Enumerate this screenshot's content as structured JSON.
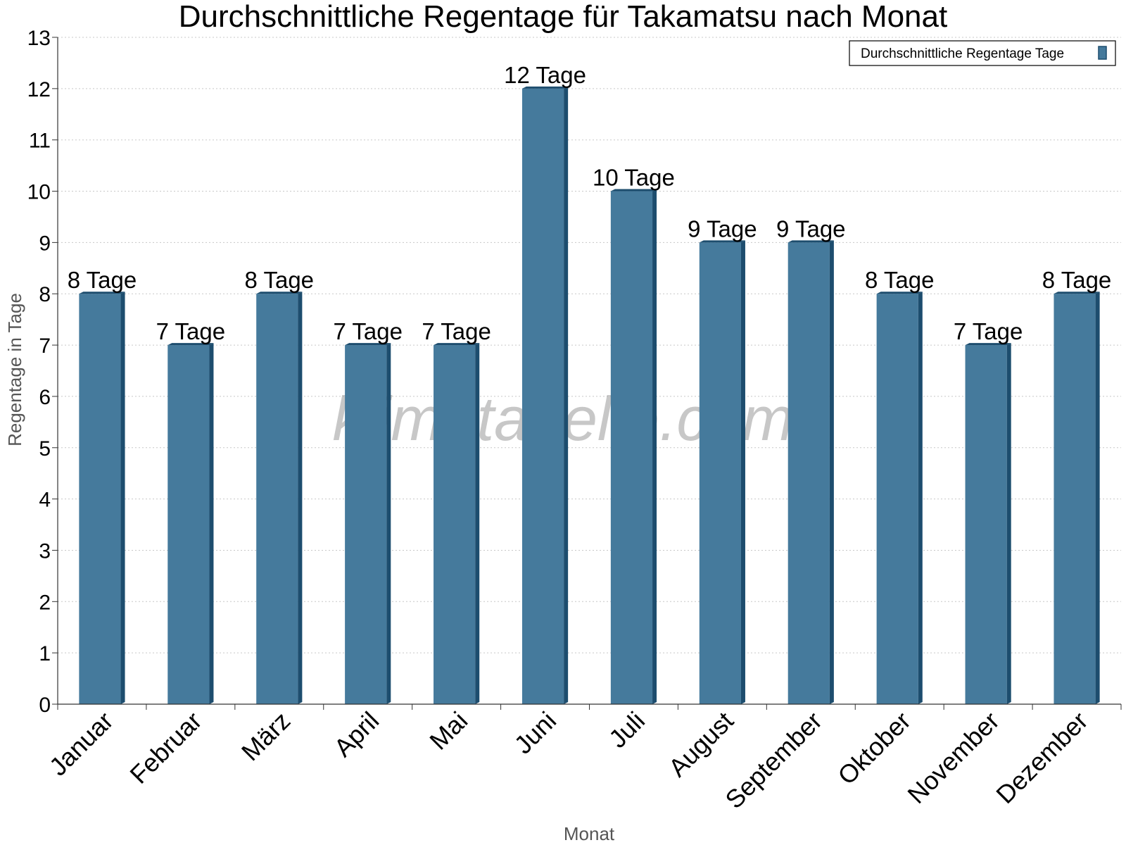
{
  "chart_data": {
    "type": "bar",
    "title": "Durchschnittliche Regentage für Takamatsu nach Monat",
    "xlabel": "Monat",
    "ylabel": "Regentage in Tage",
    "ylim": [
      0,
      13
    ],
    "yticks": [
      0,
      1,
      2,
      3,
      4,
      5,
      6,
      7,
      8,
      9,
      10,
      11,
      12,
      13
    ],
    "grid": true,
    "legend_position": "top-right",
    "categories": [
      "Januar",
      "Februar",
      "März",
      "April",
      "Mai",
      "Juni",
      "Juli",
      "August",
      "September",
      "Oktober",
      "November",
      "Dezember"
    ],
    "series": [
      {
        "name": "Durchschnittliche Regentage Tage",
        "values": [
          8,
          7,
          8,
          7,
          7,
          12,
          10,
          9,
          9,
          8,
          7,
          8
        ],
        "labels": [
          "8 Tage",
          "7 Tage",
          "8 Tage",
          "7 Tage",
          "7 Tage",
          "12 Tage",
          "10 Tage",
          "9 Tage",
          "9 Tage",
          "8 Tage",
          "7 Tage",
          "8 Tage"
        ],
        "color": "#457a9c",
        "side_color": "#1d4d6e"
      }
    ],
    "watermark": "klimatabelle.com"
  }
}
